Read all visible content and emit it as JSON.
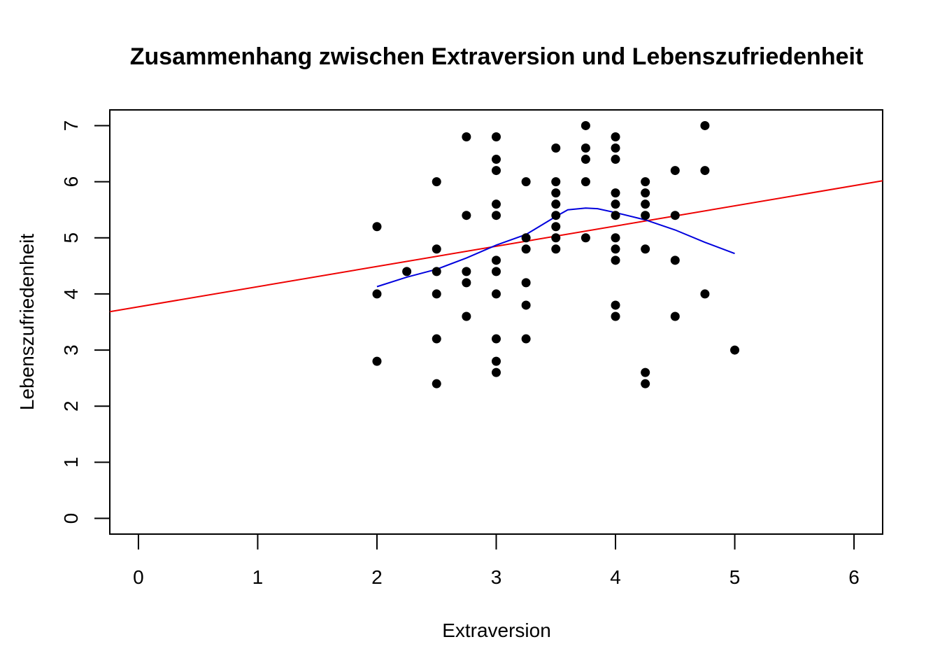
{
  "chart_data": {
    "type": "scatter",
    "title": "Zusammenhang zwischen Extraversion und Lebenszufriedenheit",
    "xlabel": "Extraversion",
    "ylabel": "Lebenszufriedenheit",
    "xlim": [
      -0.24,
      6.24
    ],
    "ylim": [
      -0.28,
      7.28
    ],
    "x_ticks": [
      0,
      1,
      2,
      3,
      4,
      5,
      6
    ],
    "y_ticks": [
      0,
      1,
      2,
      3,
      4,
      5,
      6,
      7
    ],
    "x_tick_labels": [
      "0",
      "1",
      "2",
      "3",
      "4",
      "5",
      "6"
    ],
    "y_tick_labels": [
      "0",
      "1",
      "2",
      "3",
      "4",
      "5",
      "6",
      "7"
    ],
    "points": [
      {
        "x": 2.0,
        "y": 5.2
      },
      {
        "x": 2.0,
        "y": 4.0
      },
      {
        "x": 2.0,
        "y": 2.8
      },
      {
        "x": 2.25,
        "y": 4.4
      },
      {
        "x": 2.5,
        "y": 6.0
      },
      {
        "x": 2.5,
        "y": 4.8
      },
      {
        "x": 2.5,
        "y": 4.4
      },
      {
        "x": 2.5,
        "y": 4.0
      },
      {
        "x": 2.5,
        "y": 3.2
      },
      {
        "x": 2.5,
        "y": 2.4
      },
      {
        "x": 2.75,
        "y": 6.8
      },
      {
        "x": 2.75,
        "y": 5.4
      },
      {
        "x": 2.75,
        "y": 4.4
      },
      {
        "x": 2.75,
        "y": 4.2
      },
      {
        "x": 2.75,
        "y": 3.6
      },
      {
        "x": 3.0,
        "y": 6.8
      },
      {
        "x": 3.0,
        "y": 6.4
      },
      {
        "x": 3.0,
        "y": 6.2
      },
      {
        "x": 3.0,
        "y": 5.6
      },
      {
        "x": 3.0,
        "y": 5.4
      },
      {
        "x": 3.0,
        "y": 4.6
      },
      {
        "x": 3.0,
        "y": 4.4
      },
      {
        "x": 3.0,
        "y": 4.0
      },
      {
        "x": 3.0,
        "y": 3.2
      },
      {
        "x": 3.0,
        "y": 2.8
      },
      {
        "x": 3.0,
        "y": 2.6
      },
      {
        "x": 3.25,
        "y": 6.0
      },
      {
        "x": 3.25,
        "y": 5.0
      },
      {
        "x": 3.25,
        "y": 4.8
      },
      {
        "x": 3.25,
        "y": 4.2
      },
      {
        "x": 3.25,
        "y": 3.8
      },
      {
        "x": 3.25,
        "y": 3.2
      },
      {
        "x": 3.5,
        "y": 6.6
      },
      {
        "x": 3.5,
        "y": 6.0
      },
      {
        "x": 3.5,
        "y": 5.8
      },
      {
        "x": 3.5,
        "y": 5.6
      },
      {
        "x": 3.5,
        "y": 5.4
      },
      {
        "x": 3.5,
        "y": 5.2
      },
      {
        "x": 3.5,
        "y": 5.0
      },
      {
        "x": 3.5,
        "y": 4.8
      },
      {
        "x": 3.75,
        "y": 7.0
      },
      {
        "x": 3.75,
        "y": 6.6
      },
      {
        "x": 3.75,
        "y": 6.4
      },
      {
        "x": 3.75,
        "y": 6.0
      },
      {
        "x": 3.75,
        "y": 5.0
      },
      {
        "x": 4.0,
        "y": 6.8
      },
      {
        "x": 4.0,
        "y": 6.6
      },
      {
        "x": 4.0,
        "y": 6.4
      },
      {
        "x": 4.0,
        "y": 5.8
      },
      {
        "x": 4.0,
        "y": 5.6
      },
      {
        "x": 4.0,
        "y": 5.4
      },
      {
        "x": 4.0,
        "y": 5.0
      },
      {
        "x": 4.0,
        "y": 4.8
      },
      {
        "x": 4.0,
        "y": 4.6
      },
      {
        "x": 4.0,
        "y": 3.8
      },
      {
        "x": 4.0,
        "y": 3.6
      },
      {
        "x": 4.25,
        "y": 6.0
      },
      {
        "x": 4.25,
        "y": 5.8
      },
      {
        "x": 4.25,
        "y": 5.6
      },
      {
        "x": 4.25,
        "y": 5.4
      },
      {
        "x": 4.25,
        "y": 4.8
      },
      {
        "x": 4.25,
        "y": 2.6
      },
      {
        "x": 4.25,
        "y": 2.4
      },
      {
        "x": 4.5,
        "y": 6.2
      },
      {
        "x": 4.5,
        "y": 5.4
      },
      {
        "x": 4.5,
        "y": 4.6
      },
      {
        "x": 4.5,
        "y": 3.6
      },
      {
        "x": 4.75,
        "y": 7.0
      },
      {
        "x": 4.75,
        "y": 6.2
      },
      {
        "x": 4.75,
        "y": 4.0
      },
      {
        "x": 5.0,
        "y": 3.0
      }
    ],
    "regression_line": {
      "color": "#ee0000",
      "intercept": 3.77,
      "slope": 0.36
    },
    "loess_curve": {
      "color": "#0000dd",
      "x": [
        2.0,
        2.25,
        2.5,
        2.75,
        3.0,
        3.25,
        3.5,
        3.6,
        3.75,
        3.85,
        4.0,
        4.25,
        4.5,
        4.75,
        5.0
      ],
      "y": [
        4.13,
        4.3,
        4.44,
        4.64,
        4.87,
        5.06,
        5.38,
        5.5,
        5.53,
        5.52,
        5.45,
        5.32,
        5.14,
        4.92,
        4.72
      ]
    },
    "point_color": "#000000",
    "grid": false,
    "legend": "none"
  }
}
